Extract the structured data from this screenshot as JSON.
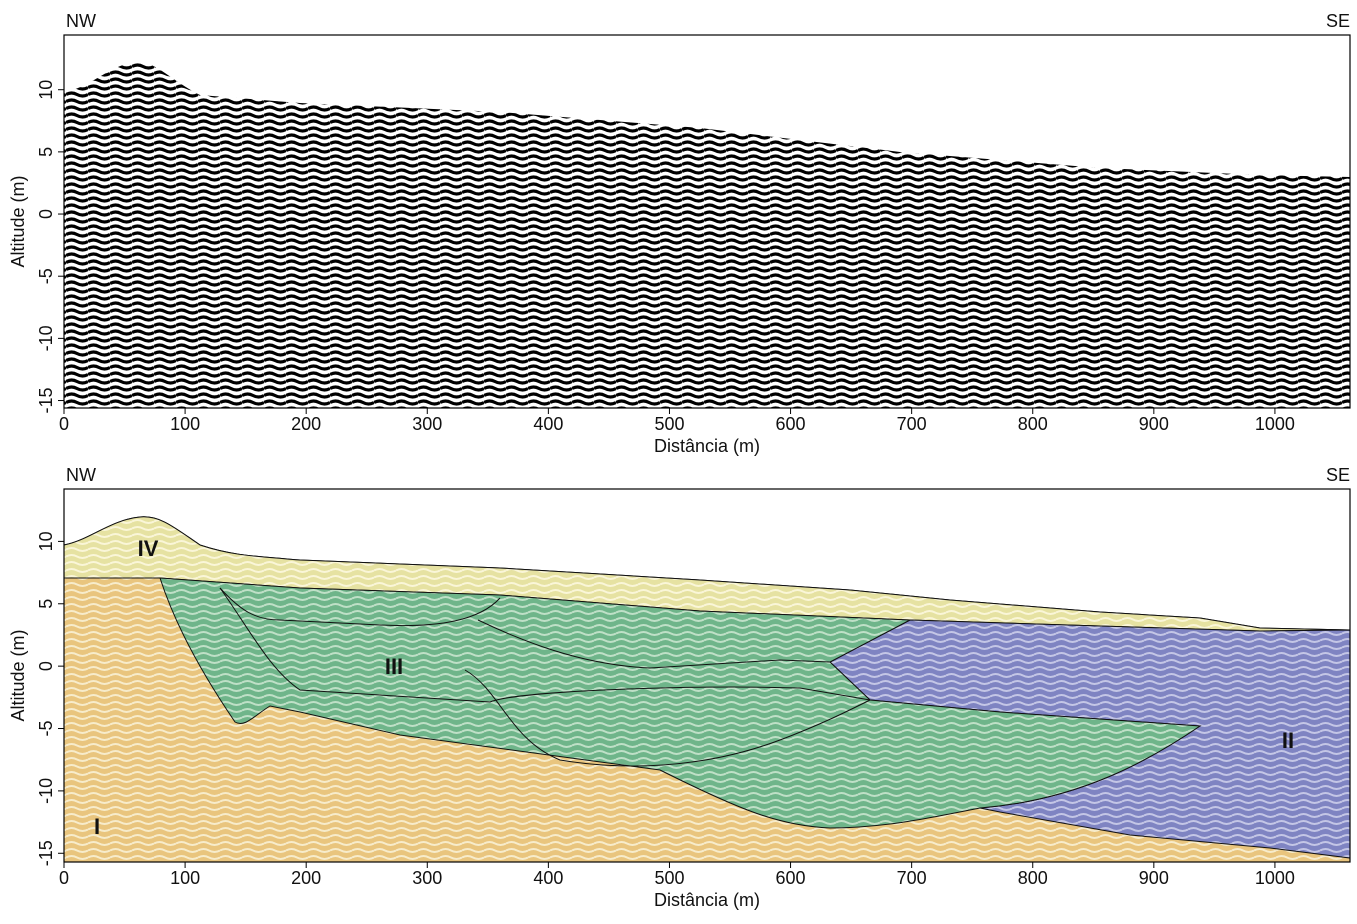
{
  "chart_data": [
    {
      "type": "radargram",
      "left_label": "NW",
      "right_label": "SE",
      "xlabel": "Distância (m)",
      "ylabel": "Altitude (m)",
      "xlim": [
        0,
        1062
      ],
      "ylim": [
        -15.6,
        14.4
      ],
      "xticks": [
        0,
        100,
        200,
        300,
        400,
        500,
        600,
        700,
        800,
        900,
        1000
      ],
      "yticks": [
        -15,
        -10,
        -5,
        0,
        5,
        10
      ]
    },
    {
      "type": "section",
      "left_label": "NW",
      "right_label": "SE",
      "xlabel": "Distância (m)",
      "ylabel": "Altitude (m)",
      "xlim": [
        0,
        1062
      ],
      "ylim": [
        -15.7,
        14.2
      ],
      "xticks": [
        0,
        100,
        200,
        300,
        400,
        500,
        600,
        700,
        800,
        900,
        1000
      ],
      "yticks": [
        -15,
        -10,
        -5,
        0,
        5,
        10
      ],
      "annotations": [
        "IV",
        "III",
        "II",
        "I"
      ]
    }
  ]
}
